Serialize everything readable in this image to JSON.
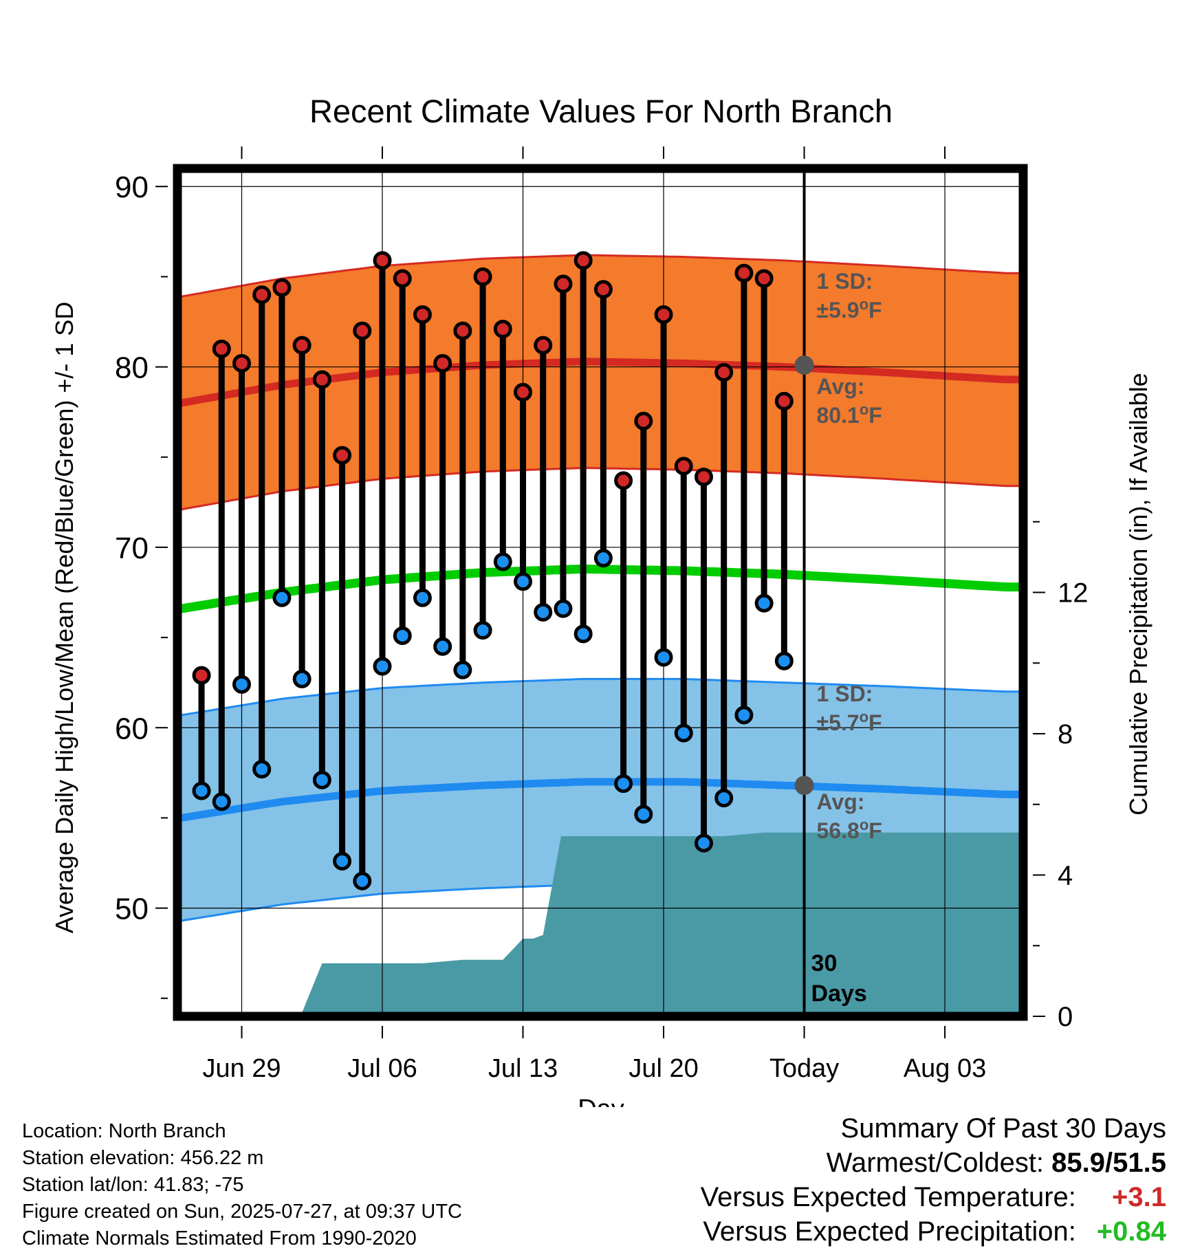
{
  "chart_data": {
    "type": "line",
    "title": "Recent Climate Values For North Branch",
    "xlabel": "Day",
    "ylabel": "Average Daily High/Low/Mean (Red/Blue/Green) +/- 1 SD",
    "y2label": "Cumulative Precipitation (in), If Available",
    "ylim": [
      44,
      91
    ],
    "y2lim": [
      0,
      24
    ],
    "x_tick_labels": [
      "Jun 29",
      "Jul 06",
      "Jul 13",
      "Jul 20",
      "Today",
      "Aug 03"
    ],
    "x_tick_days": [
      3,
      10,
      17,
      24,
      31,
      38
    ],
    "xlim": [
      -0.2,
      41.9
    ],
    "y_ticks": [
      50,
      60,
      70,
      80,
      90
    ],
    "y2_ticks": [
      0,
      4,
      8,
      12
    ],
    "today_day": 31,
    "days": [
      1,
      2,
      3,
      4,
      5,
      6,
      7,
      8,
      9,
      10,
      11,
      12,
      13,
      14,
      15,
      16,
      17,
      18,
      19,
      20,
      21,
      22,
      23,
      24,
      25,
      26,
      27,
      28,
      29,
      30
    ],
    "observed_high": [
      62.9,
      81.0,
      80.2,
      84.0,
      84.4,
      81.2,
      79.3,
      75.1,
      82.0,
      85.9,
      84.9,
      82.9,
      80.2,
      82.0,
      85.0,
      82.1,
      78.6,
      81.2,
      84.6,
      85.9,
      84.3,
      73.7,
      77.0,
      82.9,
      74.5,
      73.9,
      79.7,
      85.2,
      84.9,
      78.1
    ],
    "observed_low": [
      56.5,
      55.9,
      62.4,
      57.7,
      67.2,
      62.7,
      57.1,
      52.6,
      51.5,
      63.4,
      65.1,
      67.2,
      64.5,
      63.2,
      65.4,
      69.2,
      68.1,
      66.4,
      66.6,
      65.2,
      69.4,
      56.9,
      55.2,
      63.9,
      59.7,
      53.6,
      56.1,
      60.7,
      66.9,
      63.7
    ],
    "normal_high": [
      [
        0,
        78.0
      ],
      [
        5,
        79.0
      ],
      [
        10,
        79.7
      ],
      [
        15,
        80.1
      ],
      [
        20,
        80.3
      ],
      [
        25,
        80.2
      ],
      [
        30,
        80.0
      ],
      [
        35,
        79.7
      ],
      [
        41,
        79.3
      ]
    ],
    "normal_high_sd": 5.9,
    "normal_low": [
      [
        0,
        55.0
      ],
      [
        5,
        55.9
      ],
      [
        10,
        56.5
      ],
      [
        15,
        56.8
      ],
      [
        20,
        57.0
      ],
      [
        25,
        57.0
      ],
      [
        30,
        56.8
      ],
      [
        35,
        56.6
      ],
      [
        41,
        56.3
      ]
    ],
    "normal_low_sd": 5.7,
    "normal_mean": [
      [
        0,
        66.6
      ],
      [
        5,
        67.5
      ],
      [
        10,
        68.2
      ],
      [
        15,
        68.6
      ],
      [
        20,
        68.8
      ],
      [
        25,
        68.7
      ],
      [
        30,
        68.5
      ],
      [
        35,
        68.2
      ],
      [
        41,
        67.8
      ]
    ],
    "precip_cumulative": [
      [
        0,
        0
      ],
      [
        4,
        0
      ],
      [
        5,
        0.1
      ],
      [
        6,
        0.1
      ],
      [
        7,
        1.5
      ],
      [
        12,
        1.5
      ],
      [
        14,
        1.6
      ],
      [
        15,
        1.6
      ],
      [
        16,
        1.6
      ],
      [
        17,
        2.2
      ],
      [
        17.5,
        2.2
      ],
      [
        18,
        2.3
      ],
      [
        18.9,
        5.1
      ],
      [
        25,
        5.1
      ],
      [
        26,
        5.1
      ],
      [
        27,
        5.1
      ],
      [
        28,
        5.15
      ],
      [
        29,
        5.2
      ],
      [
        41.9,
        5.2
      ]
    ],
    "annotations": {
      "high_sd_label_1": "1 SD:",
      "high_sd_label_2": "±5.9",
      "high_avg_label_1": "Avg:",
      "high_avg_label_2": "80.1",
      "low_sd_label_1": "1 SD:",
      "low_sd_label_2": "±5.7",
      "low_avg_label_1": "Avg:",
      "low_avg_label_2": "56.8",
      "unit_sup": "o",
      "unit": "F",
      "today_label_1": "30",
      "today_label_2": "Days",
      "today_high": 80.1,
      "today_low": 56.8
    },
    "colors": {
      "high_band": "#f47a2c",
      "high_line": "#d42a22",
      "low_band": "#85c2e8",
      "low_line": "#1f8bf0",
      "mean_line": "#00cc00",
      "precip": "#4a9aa6",
      "high_dot": "#d02828",
      "low_dot": "#1c90f0",
      "annotation": "#555555"
    }
  },
  "footer": {
    "location": "Location: North Branch",
    "elevation": "Station elevation: 456.22 m",
    "latlon": "Station lat/lon: 41.83; -75",
    "created": "Figure created on Sun, 2025-07-27, at 09:37 UTC",
    "normals": "Climate Normals Estimated From 1990-2020"
  },
  "summary": {
    "heading": "Summary Of Past 30 Days",
    "warm_cold_label": "Warmest/Coldest:",
    "warm_cold_value": "85.9/51.5",
    "temp_label": "Versus Expected Temperature:",
    "temp_value": "+3.1",
    "precip_label": "Versus Expected Precipitation:",
    "precip_value": "+0.84"
  }
}
